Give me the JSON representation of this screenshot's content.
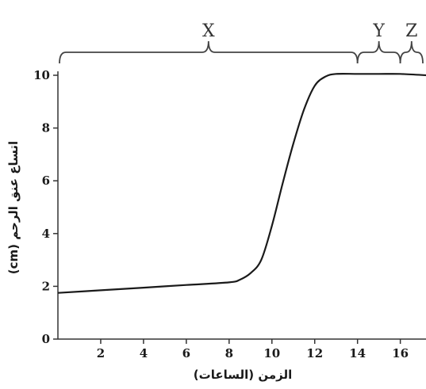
{
  "chart_data": {
    "type": "line",
    "xlabel": "الزمن (الساعات)",
    "ylabel": "اتساع عنق الرحم (cm)",
    "xlim": [
      0,
      17.2
    ],
    "ylim": [
      0,
      10
    ],
    "xticks": [
      2,
      4,
      6,
      8,
      10,
      12,
      14,
      16
    ],
    "yticks": [
      0,
      2,
      4,
      6,
      8,
      10
    ],
    "grid": false,
    "series": [
      {
        "x": [
          0,
          2,
          4,
          6,
          8,
          8.5,
          9,
          9.5,
          10,
          10.5,
          11,
          11.5,
          12,
          12.5,
          13,
          14,
          15,
          16,
          17.2
        ],
        "y": [
          1.75,
          1.85,
          1.95,
          2.05,
          2.15,
          2.25,
          2.5,
          3.0,
          4.3,
          5.9,
          7.4,
          8.7,
          9.6,
          9.95,
          10.05,
          10.05,
          10.05,
          10.05,
          10.0
        ]
      }
    ],
    "phases": [
      {
        "label": "X",
        "start": 0,
        "end": 14
      },
      {
        "label": "Y",
        "start": 14,
        "end": 16
      },
      {
        "label": "Z",
        "start": 16,
        "end": 17.2
      }
    ]
  }
}
